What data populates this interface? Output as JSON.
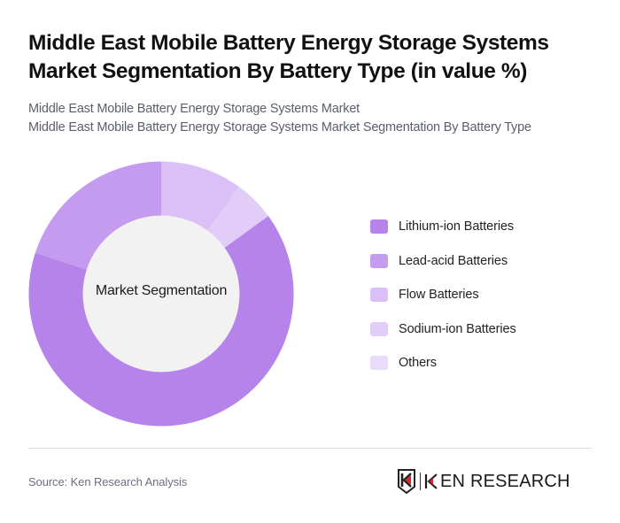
{
  "header": {
    "title": "Middle East Mobile Battery Energy Storage Systems Market Segmentation By Battery Type (in value %)",
    "subtitle_line1": "Middle East Mobile Battery Energy Storage Systems Market",
    "subtitle_line2": "Middle East Mobile Battery Energy Storage Systems Market Segmentation By Battery Type"
  },
  "chart_data": {
    "type": "pie",
    "variant": "donut",
    "title": "Middle East Mobile Battery Energy Storage Systems Market Segmentation By Battery Type (in value %)",
    "center_label": "Market Segmentation",
    "categories": [
      "Lithium-ion Batteries",
      "Lead-acid Batteries",
      "Flow Batteries",
      "Sodium-ion Batteries",
      "Others"
    ],
    "values": [
      65,
      20,
      10,
      5,
      0
    ],
    "colors": [
      "#b583ea",
      "#c49bee",
      "#dbbff7",
      "#e2ccf8",
      "#e9dcfa"
    ],
    "legend_position": "right",
    "slices_clockwise_from_top": [
      {
        "name": "Flow Batteries",
        "value": 10
      },
      {
        "name": "Sodium-ion Batteries",
        "value": 5
      },
      {
        "name": "Lithium-ion Batteries",
        "value": 65
      },
      {
        "name": "Lead-acid Batteries",
        "value": 20
      }
    ]
  },
  "legend": {
    "items": [
      {
        "label": "Lithium-ion Batteries",
        "color": "#b583ea"
      },
      {
        "label": "Lead-acid Batteries",
        "color": "#c49bee"
      },
      {
        "label": "Flow Batteries",
        "color": "#dbbff7"
      },
      {
        "label": "Sodium-ion Batteries",
        "color": "#e2ccf8"
      },
      {
        "label": "Others",
        "color": "#e9dcfa"
      }
    ]
  },
  "footer": {
    "source": "Source: Ken Research Analysis",
    "logo_text": "EN RESEARCH",
    "logo_alt": "KEN RESEARCH"
  }
}
